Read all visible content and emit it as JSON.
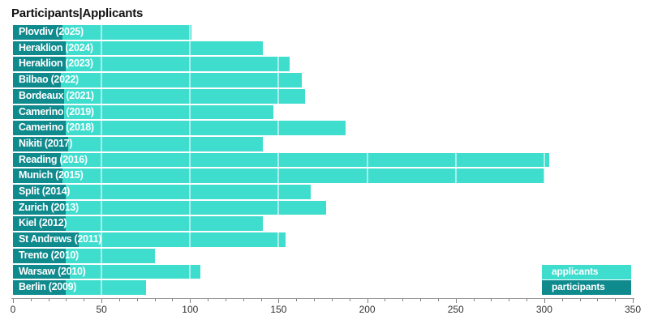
{
  "title": "Participants|Applicants",
  "colors": {
    "applicants": "#3eddce",
    "participants": "#0f8a8d",
    "gridline_over_bars": "rgba(255,255,255,0.55)",
    "axis_line": "#9a9a9a",
    "tick": "#808080",
    "tick_label": "#333333",
    "title": "#111111",
    "bar_text": "#ffffff"
  },
  "legend": {
    "position": "bottom-right",
    "items": [
      {
        "label": "applicants",
        "color": "#3eddce"
      },
      {
        "label": "participants",
        "color": "#0f8a8d"
      }
    ]
  },
  "axis": {
    "min": 0,
    "max": 350,
    "major_step": 50,
    "minor_step": 10,
    "tick_labels": [
      "0",
      "50",
      "100",
      "150",
      "200",
      "250",
      "300",
      "350"
    ]
  },
  "chart_data": {
    "type": "bar",
    "orientation": "horizontal",
    "title": "Participants|Applicants",
    "categories": [
      "Plovdiv (2025)",
      "Heraklion (2024)",
      "Heraklion (2023)",
      "Bilbao (2022)",
      "Bordeaux (2021)",
      "Camerino (2019)",
      "Camerino (2018)",
      "Nikiti (2017)",
      "Reading (2016)",
      "Munich (2015)",
      "Split (2014)",
      "Zurich (2013)",
      "Kiel (2012)",
      "St Andrews (2011)",
      "Trento (2010)",
      "Warsaw (2010)",
      "Berlin (2009)"
    ],
    "series": [
      {
        "name": "applicants",
        "values": [
          101,
          141,
          156,
          163,
          165,
          147,
          188,
          141,
          303,
          300,
          168,
          177,
          141,
          154,
          80,
          106,
          75
        ]
      },
      {
        "name": "participants",
        "values": [
          28,
          30,
          30,
          27,
          29,
          29,
          30,
          31,
          27,
          28,
          30,
          30,
          30,
          37,
          30,
          32,
          30
        ]
      }
    ],
    "xlim": [
      0,
      350
    ],
    "grid": "vertical white lines every 50 drawn over bars",
    "legend_position": "bottom-right"
  }
}
